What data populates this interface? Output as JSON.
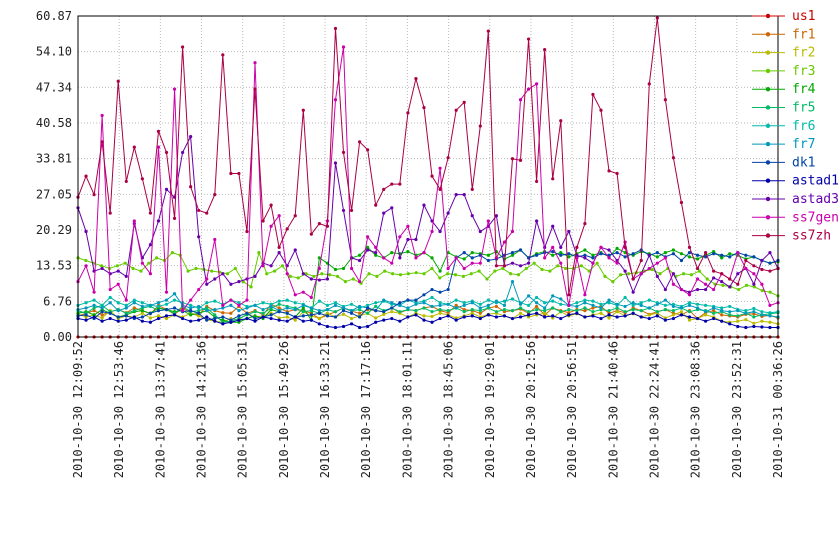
{
  "chart_data": {
    "type": "line",
    "title": "",
    "xlabel": "",
    "ylabel": "",
    "ylim": [
      0,
      60.87
    ],
    "y_ticks": [
      "0.00",
      "6.76",
      "13.53",
      "20.29",
      "27.05",
      "33.81",
      "40.58",
      "47.34",
      "54.10",
      "60.87"
    ],
    "x_tick_labels": [
      "2010-10-30 12:09:52",
      "2010-10-30 12:53:46",
      "2010-10-30 13:37:41",
      "2010-10-30 14:21:36",
      "2010-10-30 15:05:31",
      "2010-10-30 15:49:26",
      "2010-10-30 16:33:21",
      "2010-10-30 17:17:16",
      "2010-10-30 18:01:11",
      "2010-10-30 18:45:06",
      "2010-10-30 19:29:01",
      "2010-10-30 20:12:56",
      "2010-10-30 20:56:51",
      "2010-10-30 21:40:46",
      "2010-10-30 22:24:41",
      "2010-10-30 23:08:36",
      "2010-10-30 23:52:31",
      "2010-10-31 00:36:26"
    ],
    "grid": true,
    "legend_position": "right",
    "series": [
      {
        "name": "us1",
        "color": "#cc0000",
        "values": [
          0,
          0,
          0,
          0,
          0,
          0,
          0,
          0,
          0,
          0,
          0,
          0,
          0,
          0,
          0,
          0,
          0,
          0,
          0,
          0,
          0,
          0,
          0,
          0,
          0,
          0,
          0,
          0,
          0,
          0,
          0,
          0,
          0,
          0,
          0,
          0,
          0,
          0,
          0,
          0,
          0,
          0,
          0,
          0,
          0,
          0,
          0,
          0,
          0,
          0,
          0,
          0,
          0,
          0,
          0,
          0,
          0,
          0,
          0,
          0,
          0,
          0,
          0,
          0,
          0,
          0,
          0,
          0,
          0,
          0,
          0,
          0,
          0,
          0,
          0,
          0,
          0,
          0,
          0,
          0,
          0,
          0,
          0,
          0,
          0,
          0,
          0,
          0
        ]
      },
      {
        "name": "fr1",
        "color": "#cc6600",
        "values": [
          4,
          4.5,
          5,
          4.2,
          4.8,
          5.2,
          4.6,
          5.5,
          5,
          4.4,
          6,
          5.2,
          4.3,
          5.5,
          4.5,
          4.2,
          5.8,
          5,
          4.6,
          4.5,
          5.8,
          4.5,
          5,
          4.2,
          6.2,
          5.5,
          4.8,
          5.2,
          5,
          4.5,
          3.5,
          4.2,
          4.8,
          5.5,
          4.9,
          4.5,
          5.2,
          5,
          4.8,
          5.5,
          4.6,
          5.2,
          5,
          5.5,
          5.8,
          5,
          4.6,
          6,
          5.2,
          5,
          4.5,
          5.5,
          5.8,
          4.8,
          5,
          5.3,
          4.5,
          5.8,
          4.2,
          5.5,
          5,
          4.6,
          5.2,
          5,
          5.5,
          5.8,
          4.5,
          5,
          4.6,
          5.5,
          5,
          4.3,
          4.8,
          5.2,
          4.5,
          4.2,
          5,
          3.5,
          4.6,
          5,
          4.2,
          4,
          3.8,
          4.3,
          4.4,
          3.9,
          4.1,
          3.6
        ]
      },
      {
        "name": "fr2",
        "color": "#bbbb00",
        "values": [
          4.4,
          3.8,
          4.2,
          3.6,
          5,
          3.5,
          4,
          3.8,
          4.5,
          3.6,
          4,
          3.5,
          4.2,
          3.8,
          4.5,
          4,
          3.3,
          3,
          2.8,
          3.5,
          3.2,
          4.5,
          3.8,
          4,
          4.5,
          3.6,
          3.8,
          3.2,
          4.8,
          4,
          3.5,
          4.5,
          3.8,
          4.3,
          3.5,
          4,
          4.5,
          3.6,
          4.3,
          4.8,
          4.5,
          3.8,
          4.5,
          4,
          3.9,
          4.5,
          4.2,
          3.6,
          4,
          4.5,
          3.8,
          4.3,
          4.5,
          4,
          3.5,
          4.5,
          3.8,
          4.2,
          4.5,
          3.6,
          4.8,
          4,
          4.4,
          3.8,
          4.2,
          4.5,
          3.6,
          4.8,
          4,
          4.4,
          3.8,
          4.2,
          4.5,
          3.6,
          4.2,
          4.8,
          3.2,
          3.5,
          4.2,
          3.8,
          3,
          2.8,
          3,
          3.3,
          2.6,
          3,
          2.8,
          2.5
        ]
      },
      {
        "name": "fr3",
        "color": "#66cc00",
        "values": [
          15,
          14.5,
          14,
          13.5,
          13,
          13.5,
          14,
          13,
          12.5,
          14,
          15,
          14.5,
          16,
          15.5,
          12.5,
          13,
          12.8,
          12.5,
          12.3,
          12,
          13,
          10.5,
          9.5,
          16,
          12,
          12.5,
          13.5,
          11.5,
          11.2,
          12,
          11.5,
          12,
          11.8,
          11.5,
          10.5,
          11,
          10.2,
          12,
          11.5,
          12.5,
          12,
          11.8,
          12,
          12.2,
          12,
          13,
          11.2,
          12,
          11.8,
          11.5,
          12,
          12.5,
          11,
          12.5,
          13,
          12,
          11.8,
          13,
          14,
          12.8,
          12.5,
          13.5,
          13,
          13,
          13.5,
          12.5,
          14,
          11.5,
          10.5,
          11.8,
          12,
          12.2,
          12.5,
          12.8,
          12,
          13,
          11.5,
          12,
          11.8,
          12.5,
          11,
          10,
          9.8,
          9.5,
          9,
          9.8,
          9.5,
          8.8,
          8.5,
          7.8
        ]
      },
      {
        "name": "fr4",
        "color": "#00aa00",
        "values": [
          4.5,
          4.8,
          4.2,
          5.2,
          4.5,
          3.8,
          4.2,
          4.8,
          5,
          4.5,
          5.5,
          5.2,
          4.8,
          5,
          4.2,
          4.5,
          5,
          3.8,
          3.2,
          2.8,
          2.8,
          3.5,
          4,
          3.5,
          5.2,
          4.8,
          4.5,
          3.8,
          5.5,
          3.2,
          15,
          14,
          12.8,
          13,
          15,
          15.5,
          17,
          15.5,
          15,
          16,
          15.8,
          16.2,
          15.5,
          16,
          15,
          12.5,
          16,
          15.2,
          14.8,
          16,
          15.8,
          15.5,
          16.2,
          14.8,
          15.5,
          16.5,
          15,
          15.8,
          16.2,
          15.5,
          16,
          15.2,
          15.8,
          16.5,
          15.5,
          16,
          15.2,
          16.8,
          16,
          15.5,
          16.2,
          15.8,
          15.2,
          16,
          16.5,
          15.8,
          15.2,
          14.8,
          15.5,
          16.2,
          15,
          15.8,
          15.5,
          14.8,
          15.2,
          14.5,
          14,
          14.3
        ]
      },
      {
        "name": "fr5",
        "color": "#00bb66",
        "values": [
          5,
          4.5,
          5.5,
          6,
          4.8,
          5.2,
          4.5,
          5,
          5.5,
          5.8,
          5,
          5.2,
          4.5,
          5.8,
          4.8,
          5,
          5.5,
          4.2,
          2.8,
          3,
          3.5,
          4.2,
          4.8,
          4.5,
          5.5,
          6.2,
          5.8,
          5.5,
          4.8,
          5,
          4.5,
          5.2,
          4.8,
          5.5,
          5,
          5.2,
          4.5,
          5.8,
          5,
          5.5,
          4.8,
          5.2,
          5,
          5.5,
          4.8,
          5.2,
          5,
          5.5,
          4.8,
          5.2,
          5,
          5.5,
          4.8,
          5.2,
          5,
          5.5,
          4.8,
          5.2,
          5,
          5.5,
          4.8,
          5.2,
          5,
          5.5,
          4.8,
          5.2,
          5,
          5.5,
          4.8,
          5.2,
          5,
          5.5,
          4.8,
          5.2,
          5,
          5.5,
          4.8,
          5.2,
          5,
          4.5,
          4.8,
          4.2,
          4,
          4.5,
          3.8,
          4.2,
          4.4,
          4.6
        ]
      },
      {
        "name": "fr6",
        "color": "#00bbaa",
        "values": [
          6,
          6.5,
          7,
          6,
          7.5,
          6.5,
          6,
          7,
          6.5,
          6,
          5.8,
          6.2,
          7,
          6.5,
          6,
          5.5,
          6.5,
          6.8,
          6.2,
          7,
          6.5,
          5.8,
          6,
          6.5,
          6.2,
          6.8,
          7,
          6.5,
          6.2,
          5.5,
          6.8,
          6,
          6.5,
          5.8,
          6.2,
          5.5,
          6,
          6.5,
          6.8,
          6.2,
          6,
          7,
          6.5,
          6.8,
          7.5,
          6.5,
          6.2,
          7,
          6.5,
          6.8,
          6.2,
          7,
          6.5,
          6.8,
          7.2,
          6.5,
          6,
          7.5,
          6.5,
          6.8,
          6.2,
          6,
          6.5,
          7,
          6.8,
          6.2,
          6.5,
          6,
          7.5,
          6,
          6.5,
          7,
          6.5,
          6,
          6.2,
          5.8,
          6.5,
          6.2,
          6,
          5.8,
          5.5,
          5.8,
          5.2,
          5,
          5.4,
          4.8,
          4.6,
          4.8
        ]
      },
      {
        "name": "fr7",
        "color": "#0099bb",
        "values": [
          5.2,
          5.5,
          6,
          5.5,
          6.5,
          5,
          5.5,
          6.5,
          5.8,
          6,
          6.5,
          7,
          8.2,
          6,
          5.5,
          5.8,
          5,
          5.2,
          5.5,
          6,
          5,
          5.5,
          6,
          5.2,
          5.8,
          5,
          5.5,
          5.2,
          6,
          5.5,
          5,
          5.2,
          6,
          5.5,
          5,
          5.8,
          5.5,
          5,
          7,
          6.5,
          6,
          5.5,
          6.2,
          6.5,
          5.8,
          6,
          6.2,
          5.5,
          6,
          6.5,
          5.5,
          6,
          6.8,
          6,
          10.5,
          6.2,
          7.8,
          6.5,
          5.5,
          7.8,
          7.2,
          6,
          5.8,
          6.5,
          6,
          5.5,
          7,
          6.2,
          5.8,
          6.5,
          6,
          5.5,
          6.2,
          7,
          5.8,
          5.5,
          6,
          5.5,
          4.8,
          5.5,
          5,
          4.8,
          5,
          4.5,
          4.8,
          4.2,
          4,
          3.8
        ]
      },
      {
        "name": "dk1",
        "color": "#0044aa",
        "values": [
          4,
          4.2,
          3.5,
          4.8,
          4.5,
          3.8,
          4,
          3.5,
          3.8,
          4.5,
          5,
          5.2,
          5.5,
          4.8,
          5,
          4.5,
          3.2,
          3.5,
          3.8,
          3.2,
          4,
          4.5,
          3.5,
          3.8,
          4.2,
          4.8,
          4.5,
          3.8,
          4,
          4.2,
          4.5,
          4,
          3.8,
          5,
          4.5,
          3.8,
          5.5,
          5,
          4.8,
          5.5,
          6.5,
          7,
          7,
          8,
          9,
          8.5,
          9,
          15,
          16,
          15,
          15.5,
          14.5,
          14.8,
          15.5,
          16,
          16.5,
          15,
          15.5,
          16,
          16.2,
          15.5,
          15.8,
          15.2,
          15.5,
          15,
          15.8,
          15.5,
          16,
          15.2,
          15.8,
          16.5,
          15.5,
          16,
          15.2,
          15.8,
          14.5,
          16,
          15.5,
          15.2,
          15.8,
          15.5,
          15.2,
          16,
          15.5,
          15.2,
          14.5,
          14,
          14.5
        ]
      },
      {
        "name": "astad1",
        "color": "#0000aa",
        "values": [
          3.5,
          3.2,
          3.8,
          3,
          3.5,
          3,
          3.2,
          3.8,
          3,
          2.8,
          3.5,
          4,
          4.2,
          3.5,
          3,
          3.2,
          3.8,
          3,
          2.5,
          2.8,
          3.2,
          3.5,
          3,
          3.8,
          3.5,
          3.2,
          3,
          3.8,
          3,
          3.2,
          2.5,
          2,
          1.8,
          2,
          2.5,
          1.8,
          2,
          2.8,
          3.2,
          3.5,
          3,
          3.8,
          4.2,
          3.2,
          2.8,
          3.5,
          4,
          3.2,
          3.8,
          4,
          3.5,
          4.2,
          3.8,
          4,
          3.5,
          3.8,
          4.2,
          4.5,
          3.8,
          4,
          3.5,
          4.2,
          4.5,
          3.8,
          4,
          3.5,
          4.2,
          3.8,
          4,
          4.5,
          3.8,
          3.5,
          4,
          3.2,
          3.5,
          4.2,
          3.8,
          3.5,
          3,
          3.5,
          3,
          2.5,
          2,
          1.8,
          2,
          1.9,
          1.8,
          1.8
        ]
      },
      {
        "name": "astad3",
        "color": "#6600aa",
        "values": [
          24.5,
          20,
          12.5,
          13,
          12,
          12.5,
          11.5,
          21.5,
          15,
          17.5,
          22,
          28,
          26.5,
          35,
          38,
          19,
          10,
          11,
          12,
          10,
          10.5,
          11,
          11.5,
          14,
          13.5,
          16,
          13.5,
          16.5,
          12,
          11,
          10.8,
          11,
          33,
          24,
          15,
          14.5,
          16.5,
          16,
          23.5,
          24.5,
          15,
          18.5,
          18.5,
          25,
          22,
          20,
          23.5,
          27,
          27,
          23,
          20,
          21,
          23,
          13.5,
          14,
          13.5,
          14,
          22,
          17,
          21,
          17,
          20,
          15.5,
          15,
          14,
          17,
          16.5,
          14.5,
          12.5,
          8.5,
          12,
          15.5,
          11.5,
          9,
          12,
          9,
          8.5,
          9,
          9,
          11.2,
          10.5,
          9.5,
          12,
          13,
          10,
          14.5,
          16,
          13
        ]
      },
      {
        "name": "ss7gen",
        "color": "#cc00aa",
        "values": [
          10.5,
          13.5,
          8.5,
          42,
          9,
          10,
          7,
          22,
          14,
          12,
          36,
          8.5,
          47,
          5,
          7,
          9,
          11,
          18.5,
          6,
          7,
          6,
          7,
          52,
          13.5,
          21,
          23,
          12,
          8,
          8.5,
          7.5,
          13,
          22,
          45,
          55,
          13,
          10.5,
          19,
          17,
          15,
          14,
          19,
          21,
          15,
          16,
          20,
          32,
          13,
          15,
          13,
          14,
          14,
          22,
          15,
          18,
          20,
          45,
          47,
          48,
          15,
          17,
          14,
          6,
          15,
          8,
          14,
          17,
          15,
          14,
          18,
          11,
          12,
          13,
          14,
          15,
          10,
          9,
          8,
          11,
          10,
          9,
          12,
          11,
          16,
          13,
          12,
          10,
          6,
          6.5
        ]
      },
      {
        "name": "ss7zh",
        "color": "#aa0044",
        "values": [
          26.5,
          30.5,
          27,
          37,
          23.5,
          48.5,
          29.5,
          36,
          30,
          23.5,
          39,
          35,
          22.5,
          55,
          28.5,
          24,
          23.5,
          27,
          53.5,
          31,
          31,
          20,
          47,
          22,
          25,
          17,
          20.5,
          23,
          43,
          19.5,
          21.5,
          21,
          58.5,
          35,
          24,
          37,
          35.5,
          25,
          28,
          29,
          29,
          42.5,
          49,
          43.5,
          30.5,
          28,
          34,
          43,
          44.5,
          28,
          40,
          58,
          13.5,
          13.5,
          33.8,
          33.5,
          56.5,
          29.5,
          54.5,
          30,
          41,
          8,
          17,
          21.5,
          46,
          43,
          31.5,
          31,
          17,
          11,
          14.5,
          48,
          60.5,
          45,
          34,
          25.5,
          17,
          13,
          16,
          12.5,
          12,
          11,
          10,
          14.5,
          13.5,
          12.8,
          12.5,
          13
        ]
      }
    ]
  }
}
